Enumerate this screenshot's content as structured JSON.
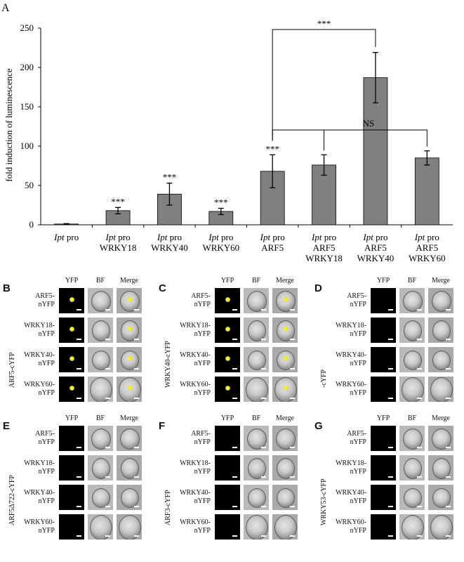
{
  "panel_a": {
    "letter": "A",
    "chart_data": {
      "type": "bar",
      "ylabel": "fold induction of luminescence",
      "ylim": [
        0,
        250
      ],
      "yticks": [
        0,
        50,
        100,
        150,
        200,
        250
      ],
      "categories": [
        {
          "italic": "Ipt",
          "lines": [
            "pro"
          ]
        },
        {
          "italic": "Ipt",
          "lines": [
            "pro",
            "WRKY18"
          ]
        },
        {
          "italic": "Ipt",
          "lines": [
            "pro",
            "WRKY40"
          ]
        },
        {
          "italic": "Ipt",
          "lines": [
            "pro",
            "WRKY60"
          ]
        },
        {
          "italic": "Ipt",
          "lines": [
            "pro",
            "ARF5"
          ]
        },
        {
          "italic": "Ipt",
          "lines": [
            "pro",
            "ARF5",
            "WRKY18"
          ]
        },
        {
          "italic": "Ipt",
          "lines": [
            "pro",
            "ARF5",
            "WRKY40"
          ]
        },
        {
          "italic": "Ipt",
          "lines": [
            "pro",
            "ARF5",
            "WRKY60"
          ]
        }
      ],
      "values": [
        1,
        18,
        39,
        17,
        68,
        76,
        187,
        85
      ],
      "errors": [
        0.5,
        4,
        14,
        4,
        21,
        13,
        32,
        9
      ],
      "significance": [
        "",
        "***",
        "***",
        "***",
        "***",
        "",
        "",
        ""
      ],
      "comparisons": [
        {
          "label": "***",
          "from": 4,
          "to": [
            6
          ]
        },
        {
          "label": "NS",
          "from": 4,
          "to": [
            5,
            7
          ]
        }
      ],
      "bar_color": "#808080"
    }
  },
  "panels": [
    {
      "letter": "B",
      "side": "ARF5-cYFP",
      "headers": [
        "YFP",
        "BF",
        "Merge"
      ],
      "rows": [
        [
          "ARF5-",
          "nYFP"
        ],
        [
          "WRKY18-",
          "nYFP"
        ],
        [
          "WRKY40-",
          "nYFP"
        ],
        [
          "WRKY60-",
          "nYFP"
        ]
      ],
      "signal": [
        true,
        true,
        true,
        true
      ]
    },
    {
      "letter": "C",
      "side": "WRKY40-cYFP",
      "headers": [
        "YFP",
        "BF",
        "Merge"
      ],
      "rows": [
        [
          "ARF5-",
          "nYFP"
        ],
        [
          "WRKY18-",
          "nYFP"
        ],
        [
          "WRKY40-",
          "nYFP"
        ],
        [
          "WRKY60-",
          "nYFP"
        ]
      ],
      "signal": [
        true,
        true,
        true,
        true
      ]
    },
    {
      "letter": "D",
      "side": "-cYFP",
      "headers": [
        "YFP",
        "BF",
        "Merge"
      ],
      "rows": [
        [
          "ARF5-",
          "nYFP"
        ],
        [
          "WRKY18-",
          "nYFP"
        ],
        [
          "WRKY40-",
          "nYFP"
        ],
        [
          "WRKY60-",
          "nYFP"
        ]
      ],
      "signal": [
        false,
        false,
        false,
        false
      ]
    },
    {
      "letter": "E",
      "side": "ARF5Δ722-cYFP",
      "headers": [
        "YFP",
        "BF",
        "Merge"
      ],
      "rows": [
        [
          "ARF5-",
          "nYFP"
        ],
        [
          "WRKY18-",
          "nYFP"
        ],
        [
          "WRKY40-",
          "nYFP"
        ],
        [
          "WRKY60-",
          "nYFP"
        ]
      ],
      "signal": [
        false,
        false,
        false,
        false
      ]
    },
    {
      "letter": "F",
      "side": "ARF3-cYFP",
      "headers": [
        "YFP",
        "BF",
        "Merge"
      ],
      "rows": [
        [
          "ARF5-",
          "nYFP"
        ],
        [
          "WRKY18-",
          "nYFP"
        ],
        [
          "WRKY40-",
          "nYFP"
        ],
        [
          "WRKY60-",
          "nYFP"
        ]
      ],
      "signal": [
        false,
        false,
        false,
        false
      ]
    },
    {
      "letter": "G",
      "side": "WRKY53-cYFP",
      "headers": [
        "YFP",
        "BF",
        "Merge"
      ],
      "rows": [
        [
          "ARF5-",
          "nYFP"
        ],
        [
          "WRKY18-",
          "nYFP"
        ],
        [
          "WRKY40-",
          "nYFP"
        ],
        [
          "WRKY60-",
          "nYFP"
        ]
      ],
      "signal": [
        false,
        false,
        false,
        false
      ]
    }
  ]
}
